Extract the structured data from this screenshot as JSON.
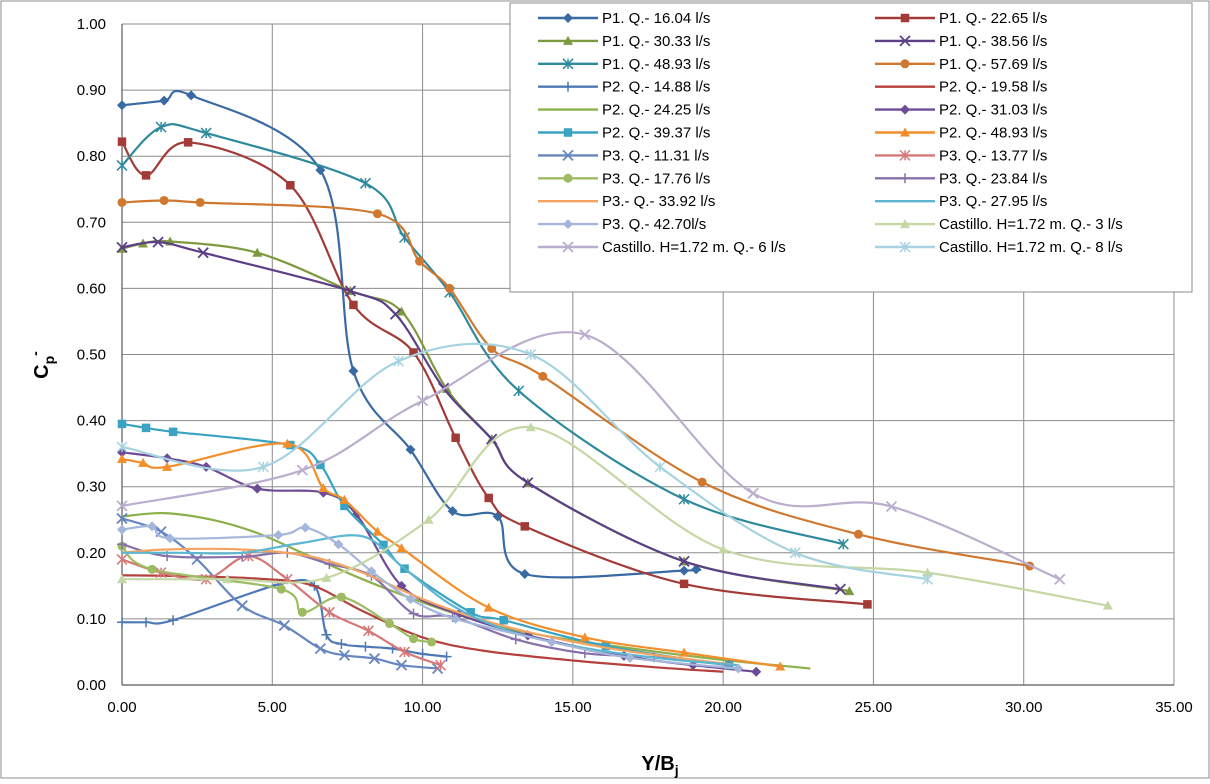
{
  "chart_data": {
    "type": "scatter",
    "title": "",
    "xlabel": "Y/B",
    "xlabel_sub": "j",
    "ylabel": "C",
    "ylabel_sub": "p",
    "ylabel_sup": "-",
    "xlim": [
      0,
      35
    ],
    "ylim": [
      0,
      1
    ],
    "xticks": [
      0,
      5,
      10,
      15,
      20,
      25,
      30,
      35
    ],
    "yticks": [
      0,
      0.1,
      0.2,
      0.3,
      0.4,
      0.5,
      0.6,
      0.7,
      0.8,
      0.9,
      1.0
    ],
    "xtick_labels": [
      "0.00",
      "5.00",
      "10.00",
      "15.00",
      "20.00",
      "25.00",
      "30.00",
      "35.00"
    ],
    "ytick_labels": [
      "0.00",
      "0.10",
      "0.20",
      "0.30",
      "0.40",
      "0.50",
      "0.60",
      "0.70",
      "0.80",
      "0.90",
      "1.00"
    ],
    "grid": true,
    "legend_position": "top-right",
    "series": [
      {
        "name": "P1. Q.- 16.04 l/s",
        "color": "#3A6AA4",
        "marker": "diamond",
        "x": [
          0,
          1.4,
          2.3,
          6.6,
          7.7,
          9.6,
          11,
          12.5,
          13.4,
          18.7,
          19.1
        ],
        "y": [
          0.877,
          0.884,
          0.892,
          0.779,
          0.475,
          0.356,
          0.263,
          0.255,
          0.168,
          0.173,
          0.175
        ]
      },
      {
        "name": "P1. Q.- 22.65 l/s",
        "color": "#A23B38",
        "marker": "square",
        "x": [
          0,
          0.8,
          2.2,
          5.6,
          7.7,
          9.7,
          11.1,
          12.2,
          13.4,
          18.7,
          24.8
        ],
        "y": [
          0.822,
          0.771,
          0.821,
          0.756,
          0.575,
          0.503,
          0.374,
          0.283,
          0.24,
          0.153,
          0.122
        ]
      },
      {
        "name": "P1. Q.- 30.33 l/s",
        "color": "#7E9A3F",
        "marker": "triangle",
        "x": [
          0,
          0.7,
          1.6,
          4.5,
          7.6,
          9.3,
          10.8,
          12.3,
          13.5,
          18.7,
          24.2
        ],
        "y": [
          0.66,
          0.668,
          0.671,
          0.654,
          0.596,
          0.565,
          0.448,
          0.372,
          0.306,
          0.187,
          0.142
        ]
      },
      {
        "name": "P1. Q.- 38.56 l/s",
        "color": "#5B3F87",
        "marker": "x",
        "x": [
          0,
          1.2,
          2.7,
          7.6,
          9.1,
          10.7,
          12.3,
          13.5,
          18.7,
          23.9
        ],
        "y": [
          0.662,
          0.67,
          0.654,
          0.596,
          0.561,
          0.449,
          0.372,
          0.306,
          0.187,
          0.145
        ]
      },
      {
        "name": "P1. Q.- 48.93 l/s",
        "color": "#2E8A9C",
        "marker": "asterisk",
        "x": [
          0,
          1.3,
          2.8,
          8.1,
          9.4,
          10.9,
          13.2,
          18.7,
          24
        ],
        "y": [
          0.786,
          0.844,
          0.835,
          0.759,
          0.677,
          0.594,
          0.445,
          0.281,
          0.213
        ]
      },
      {
        "name": "P1. Q.- 57.69 l/s",
        "color": "#D0782F",
        "marker": "circle",
        "x": [
          0,
          1.4,
          2.6,
          8.5,
          9.9,
          10.9,
          12.3,
          14,
          19.3,
          24.5,
          30.2
        ],
        "y": [
          0.73,
          0.733,
          0.73,
          0.713,
          0.641,
          0.6,
          0.509,
          0.467,
          0.307,
          0.228,
          0.18
        ]
      },
      {
        "name": "P2. Q.- 14.88 l/s",
        "color": "#4F79B4",
        "marker": "plus",
        "x": [
          0,
          0.8,
          1.7,
          5.2,
          6.4,
          6.8,
          7.3,
          8.1,
          9,
          10,
          10.8
        ],
        "y": [
          0.095,
          0.095,
          0.098,
          0.152,
          0.15,
          0.076,
          0.062,
          0.058,
          0.055,
          0.047,
          0.043
        ]
      },
      {
        "name": "P2. Q.- 19.58 l/s",
        "color": "#B5403C",
        "marker": "dash",
        "x": [
          0,
          1.7,
          4.5,
          6.3,
          8,
          10,
          12,
          15,
          18,
          20
        ],
        "y": [
          0.166,
          0.165,
          0.161,
          0.151,
          0.112,
          0.072,
          0.052,
          0.037,
          0.026,
          0.02
        ]
      },
      {
        "name": "P2. Q.- 24.25 l/s",
        "color": "#8CB04B",
        "marker": "dash",
        "x": [
          0,
          1.4,
          3,
          4.5,
          6,
          8,
          10,
          12,
          14,
          17,
          20,
          22.9
        ],
        "y": [
          0.255,
          0.26,
          0.25,
          0.23,
          0.2,
          0.16,
          0.125,
          0.095,
          0.075,
          0.055,
          0.038,
          0.025
        ]
      },
      {
        "name": "P2. Q.- 31.03 l/s",
        "color": "#6D4B96",
        "marker": "diamond",
        "x": [
          0,
          1.5,
          2.8,
          4.5,
          6.7,
          7.8,
          9.3,
          11.2,
          13.5,
          16.7,
          19,
          21.1
        ],
        "y": [
          0.352,
          0.343,
          0.33,
          0.297,
          0.291,
          0.258,
          0.15,
          0.107,
          0.075,
          0.044,
          0.03,
          0.02
        ]
      },
      {
        "name": "P2. Q.- 39.37 l/s",
        "color": "#3AA3C2",
        "marker": "square",
        "x": [
          0,
          0.8,
          1.7,
          5.6,
          6.6,
          7.4,
          8.7,
          9.4,
          11.6,
          12.7,
          16.1,
          20.2
        ],
        "y": [
          0.395,
          0.389,
          0.383,
          0.363,
          0.333,
          0.271,
          0.212,
          0.176,
          0.11,
          0.098,
          0.059,
          0.03
        ]
      },
      {
        "name": "P2. Q.- 48.93 l/s",
        "color": "#F28E2B",
        "marker": "triangle",
        "x": [
          0,
          0.7,
          1.5,
          5.5,
          6.7,
          7.4,
          8.5,
          9.3,
          12.2,
          15.4,
          18.7,
          21.9
        ],
        "y": [
          0.342,
          0.336,
          0.33,
          0.365,
          0.298,
          0.28,
          0.232,
          0.207,
          0.117,
          0.072,
          0.049,
          0.028
        ]
      },
      {
        "name": "P3. Q.- 11.31 l/s",
        "color": "#6886C0",
        "marker": "x",
        "x": [
          0,
          1.3,
          2.5,
          4,
          5.4,
          6.6,
          7.4,
          8.4,
          9.3,
          10.5
        ],
        "y": [
          0.252,
          0.232,
          0.19,
          0.12,
          0.09,
          0.055,
          0.045,
          0.04,
          0.03,
          0.025
        ]
      },
      {
        "name": "P3. Q.- 13.77 l/s",
        "color": "#D57978",
        "marker": "asterisk",
        "x": [
          0,
          1.3,
          2.8,
          4.2,
          5.5,
          6.9,
          8.2,
          9.4,
          10.6
        ],
        "y": [
          0.19,
          0.17,
          0.16,
          0.195,
          0.16,
          0.11,
          0.082,
          0.05,
          0.03
        ]
      },
      {
        "name": "P3. Q.- 17.76 l/s",
        "color": "#9DBB61",
        "marker": "circle",
        "x": [
          0,
          1,
          5.3,
          6,
          7.3,
          8.9,
          9.7,
          10.3
        ],
        "y": [
          0.21,
          0.175,
          0.145,
          0.11,
          0.133,
          0.093,
          0.07,
          0.065
        ]
      },
      {
        "name": "P3. Q.- 23.84 l/s",
        "color": "#8871A8",
        "marker": "plus",
        "x": [
          0,
          1.5,
          4,
          5.5,
          6.9,
          8.3,
          9.7,
          11,
          13.1,
          15.4,
          17.7,
          20.2
        ],
        "y": [
          0.213,
          0.195,
          0.194,
          0.2,
          0.183,
          0.165,
          0.108,
          0.103,
          0.069,
          0.048,
          0.042,
          0.03
        ]
      },
      {
        "name": "P3.- Q.- 33.92 l/s",
        "color": "#F4A460",
        "marker": "dash",
        "x": [
          0,
          1.5,
          4,
          6.2,
          8,
          10,
          12,
          14.5,
          17,
          20.5
        ],
        "y": [
          0.2,
          0.205,
          0.205,
          0.195,
          0.17,
          0.13,
          0.098,
          0.07,
          0.05,
          0.03
        ]
      },
      {
        "name": "P3. Q.- 27.95 l/s",
        "color": "#5BB6D1",
        "marker": "dash",
        "x": [
          0,
          2,
          4,
          6,
          8,
          9.3,
          11,
          13,
          15.5,
          18,
          20.5
        ],
        "y": [
          0.2,
          0.2,
          0.2,
          0.215,
          0.225,
          0.18,
          0.12,
          0.08,
          0.055,
          0.04,
          0.03
        ]
      },
      {
        "name": "P3. Q.- 42.70l/s",
        "color": "#A4B7DB",
        "marker": "diamond",
        "x": [
          0,
          1,
          1.6,
          5.2,
          6.1,
          7.2,
          8.3,
          9.6,
          11.1,
          14.3,
          16.9,
          20.5
        ],
        "y": [
          0.235,
          0.24,
          0.222,
          0.227,
          0.238,
          0.213,
          0.172,
          0.13,
          0.1,
          0.065,
          0.041,
          0.025
        ]
      },
      {
        "name": "Castillo. H=1.72 m. Q.- 3 l/s",
        "color": "#C4D7A4",
        "marker": "triangle",
        "x": [
          0,
          3.5,
          6.8,
          10.2,
          13.6,
          20,
          26.8,
          32.8
        ],
        "y": [
          0.16,
          0.16,
          0.162,
          0.25,
          0.39,
          0.205,
          0.17,
          0.12
        ]
      },
      {
        "name": "Castillo. H=1.72 m. Q.- 6 l/s",
        "color": "#BBAECD",
        "marker": "x",
        "x": [
          0,
          6,
          10,
          15.4,
          21,
          25.6,
          31.2
        ],
        "y": [
          0.271,
          0.325,
          0.43,
          0.53,
          0.29,
          0.27,
          0.16
        ]
      },
      {
        "name": "Castillo. H=1.72 m. Q.- 8 l/s",
        "color": "#A7D3E0",
        "marker": "asterisk",
        "x": [
          0,
          4.7,
          9.2,
          13.6,
          17.9,
          22.4,
          26.8
        ],
        "y": [
          0.36,
          0.33,
          0.49,
          0.5,
          0.33,
          0.2,
          0.16
        ]
      }
    ]
  }
}
